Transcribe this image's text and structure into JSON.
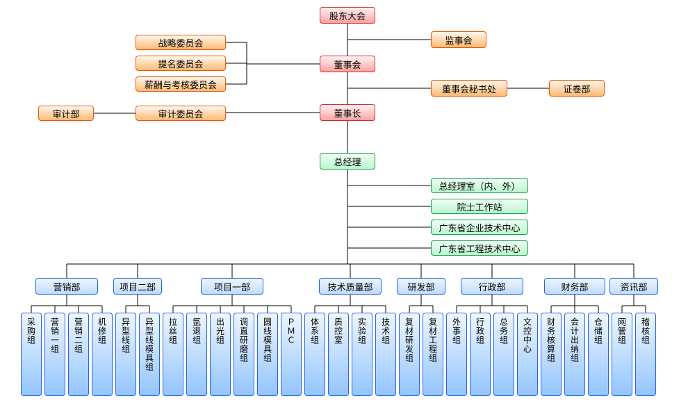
{
  "colors": {
    "red_fill": "linear-gradient(#fef2f2,#fca5a5)",
    "red_border": "#dc2626",
    "orange_fill": "linear-gradient(#fff7ed,#fdba74)",
    "orange_border": "#ea580c",
    "green_fill": "linear-gradient(#f0fdf4,#bbf7d0)",
    "green_border": "#16a34a",
    "blue_fill": "linear-gradient(#eff6ff,#bfdbfe)",
    "blue_border": "#2563eb",
    "vblue_fill": "linear-gradient(#eff6ff,#93c5fd)",
    "line": "#000000"
  },
  "top": {
    "shareholders": "股东大会",
    "board": "董事会",
    "chairman": "董事长",
    "gm": "总经理",
    "supervisors": "监事会",
    "secretariat": "董事会秘书处",
    "securities": "证卷部",
    "committees": {
      "strategy": "战略委员会",
      "nomination": "提名委员会",
      "compensation": "薪酬与考核委员会",
      "audit": "审计委员会"
    },
    "audit_dept": "审计部"
  },
  "gm_side": {
    "office": "总经理室（内、外）",
    "academician": "院士工作站",
    "tech_center": "广东省企业技术中心",
    "eng_center": "广东省工程技术中心"
  },
  "depts": {
    "marketing": "营销部",
    "proj2": "项目二部",
    "proj1": "项目一部",
    "tech_quality": "技术质量部",
    "rd": "研发部",
    "admin": "行政部",
    "finance": "财务部",
    "info": "资讯部"
  },
  "teams": {
    "t1": "采购组",
    "t2": "营销一组",
    "t3": "营销二组",
    "t4": "机修组",
    "t5": "异型线组",
    "t6": "异型线模具组",
    "t7": "拉丝组",
    "t8": "氩退组",
    "t9": "出光组",
    "t10": "调直研磨组",
    "t11": "圆线模具组",
    "t12": "ＰＭＣ",
    "t13": "体系组",
    "t14": "质控室",
    "t15": "实验组",
    "t16": "技术组",
    "t17": "复材研发组",
    "t18": "复材工程组",
    "t19": "外事组",
    "t20": "行政组",
    "t21": "总务组",
    "t22": "文控中心",
    "t23": "财务核算组",
    "t24": "会计出纳组",
    "t25": "仓储组",
    "t26": "网管组",
    "t27": "稽核组"
  }
}
